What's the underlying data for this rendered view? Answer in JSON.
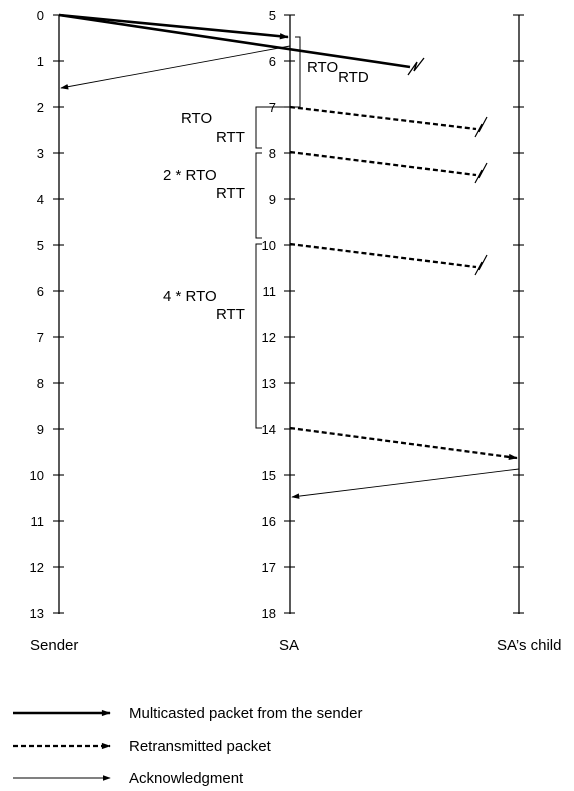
{
  "columns": {
    "sender": {
      "label": "Sender",
      "ticks": [
        "0",
        "1",
        "2",
        "3",
        "4",
        "5",
        "6",
        "7",
        "8",
        "9",
        "10",
        "11",
        "12",
        "13"
      ]
    },
    "sa": {
      "label": "SA",
      "ticks": [
        "5",
        "6",
        "7",
        "8",
        "9",
        "10",
        "11",
        "12",
        "13",
        "14",
        "15",
        "16",
        "17",
        "18"
      ]
    },
    "child": {
      "label": "SA’s child"
    }
  },
  "annotations": {
    "rto_rtd": {
      "main": "RTO",
      "sub": "RTD"
    },
    "rto_rtt_1": {
      "main": "RTO",
      "sub": "RTT"
    },
    "rto_rtt_2": {
      "main": "2 * RTO",
      "sub": "RTT"
    },
    "rto_rtt_4": {
      "main": "4 * RTO",
      "sub": "RTT"
    }
  },
  "legend": [
    {
      "label": "Multicasted packet from the sender",
      "style": "thick-solid"
    },
    {
      "label": "Retransmitted packet",
      "style": "dashed"
    },
    {
      "label": "Acknowledgment",
      "style": "thin-solid"
    }
  ],
  "colors": {
    "ink": "#000000",
    "background": "#ffffff"
  }
}
